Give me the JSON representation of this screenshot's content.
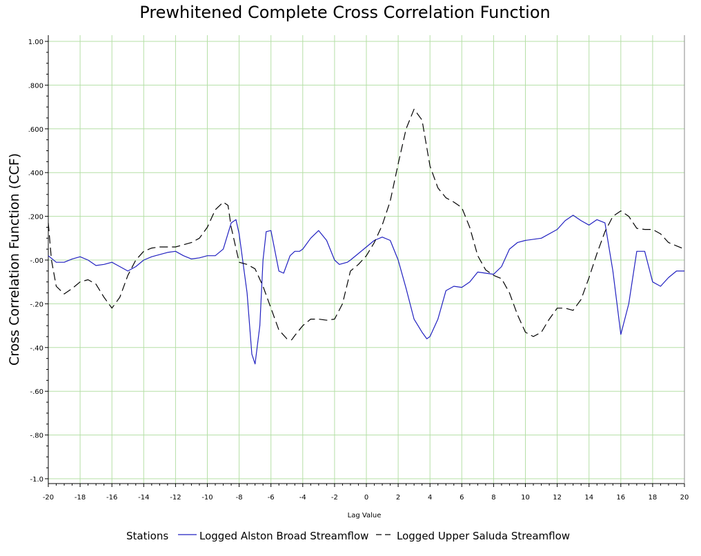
{
  "chart_data": {
    "type": "line",
    "title": "Prewhitened Complete Cross Correlation Function",
    "xlabel": "Lag Value",
    "ylabel": "Cross Correlation Function (CCF)",
    "xlim": [
      -20,
      20
    ],
    "ylim": [
      -1.0,
      1.0
    ],
    "x_ticks": [
      -20,
      -18,
      -16,
      -14,
      -12,
      -10,
      -8,
      -6,
      -4,
      -2,
      0,
      2,
      4,
      6,
      8,
      10,
      12,
      14,
      16,
      18,
      20
    ],
    "x_tick_labels": [
      "-20",
      "-18",
      "-16",
      "-14",
      "-12",
      "-10",
      "-8",
      "-6",
      "-4",
      "-2",
      "0",
      "2",
      "4",
      "6",
      "8",
      "10",
      "12",
      "14",
      "16",
      "18",
      "20"
    ],
    "y_ticks": [
      1.0,
      0.8,
      0.6,
      0.4,
      0.2,
      0.0,
      -0.2,
      -0.4,
      -0.6,
      -0.8,
      -1.0
    ],
    "y_tick_labels": [
      "1.00",
      ".800",
      ".600",
      ".400",
      ".200",
      "-.00",
      "-.20",
      "-.40",
      "-.60",
      "-.80",
      "-1.0"
    ],
    "grid": true,
    "grid_color": "#b5dfa6",
    "legend_title": "Stations",
    "legend_position": "bottom",
    "series": [
      {
        "name": "Logged Alston Broad Streamflow",
        "color": "#2020c0",
        "dash": "solid",
        "points": [
          [
            -20,
            0.02
          ],
          [
            -19.5,
            -0.01
          ],
          [
            -19,
            -0.01
          ],
          [
            -18.5,
            0.005
          ],
          [
            -18,
            0.015
          ],
          [
            -17.5,
            0.0
          ],
          [
            -17,
            -0.025
          ],
          [
            -16.5,
            -0.02
          ],
          [
            -16,
            -0.01
          ],
          [
            -15.5,
            -0.03
          ],
          [
            -15,
            -0.05
          ],
          [
            -14.5,
            -0.03
          ],
          [
            -14,
            0.0
          ],
          [
            -13.5,
            0.015
          ],
          [
            -13,
            0.025
          ],
          [
            -12.5,
            0.035
          ],
          [
            -12,
            0.04
          ],
          [
            -11.5,
            0.02
          ],
          [
            -11,
            0.005
          ],
          [
            -10.5,
            0.01
          ],
          [
            -10,
            0.02
          ],
          [
            -9.5,
            0.02
          ],
          [
            -9,
            0.05
          ],
          [
            -8.5,
            0.17
          ],
          [
            -8.2,
            0.185
          ],
          [
            -8,
            0.12
          ],
          [
            -7.5,
            -0.15
          ],
          [
            -7.2,
            -0.43
          ],
          [
            -7,
            -0.475
          ],
          [
            -6.7,
            -0.3
          ],
          [
            -6.5,
            0.0
          ],
          [
            -6.3,
            0.13
          ],
          [
            -6,
            0.135
          ],
          [
            -5.5,
            -0.05
          ],
          [
            -5.2,
            -0.06
          ],
          [
            -4.8,
            0.02
          ],
          [
            -4.5,
            0.04
          ],
          [
            -4.2,
            0.04
          ],
          [
            -4,
            0.05
          ],
          [
            -3.5,
            0.1
          ],
          [
            -3,
            0.135
          ],
          [
            -2.5,
            0.09
          ],
          [
            -2,
            0.0
          ],
          [
            -1.7,
            -0.02
          ],
          [
            -1.2,
            -0.01
          ],
          [
            -1,
            0.0
          ],
          [
            -0.5,
            0.03
          ],
          [
            0,
            0.06
          ],
          [
            0.5,
            0.09
          ],
          [
            1,
            0.105
          ],
          [
            1.5,
            0.09
          ],
          [
            2,
            0.0
          ],
          [
            2.5,
            -0.13
          ],
          [
            3,
            -0.27
          ],
          [
            3.5,
            -0.33
          ],
          [
            3.8,
            -0.36
          ],
          [
            4,
            -0.35
          ],
          [
            4.5,
            -0.27
          ],
          [
            5,
            -0.14
          ],
          [
            5.5,
            -0.12
          ],
          [
            6,
            -0.125
          ],
          [
            6.5,
            -0.1
          ],
          [
            7,
            -0.055
          ],
          [
            7.5,
            -0.06
          ],
          [
            8,
            -0.065
          ],
          [
            8.5,
            -0.03
          ],
          [
            9,
            0.05
          ],
          [
            9.5,
            0.08
          ],
          [
            10,
            0.09
          ],
          [
            11,
            0.1
          ],
          [
            12,
            0.14
          ],
          [
            12.5,
            0.18
          ],
          [
            13,
            0.205
          ],
          [
            13.5,
            0.18
          ],
          [
            14,
            0.16
          ],
          [
            14.5,
            0.185
          ],
          [
            15,
            0.17
          ],
          [
            15.5,
            -0.05
          ],
          [
            16,
            -0.34
          ],
          [
            16.5,
            -0.2
          ],
          [
            17,
            0.04
          ],
          [
            17.5,
            0.04
          ],
          [
            18,
            -0.1
          ],
          [
            18.5,
            -0.12
          ],
          [
            19,
            -0.08
          ],
          [
            19.5,
            -0.05
          ],
          [
            20,
            -0.05
          ]
        ]
      },
      {
        "name": "Logged Upper Saluda Streamflow",
        "color": "#000000",
        "dash": "dashed",
        "points": [
          [
            -20,
            0.17
          ],
          [
            -19.8,
            0.0
          ],
          [
            -19.5,
            -0.12
          ],
          [
            -19,
            -0.155
          ],
          [
            -18.5,
            -0.13
          ],
          [
            -18,
            -0.1
          ],
          [
            -17.5,
            -0.09
          ],
          [
            -17,
            -0.11
          ],
          [
            -16.5,
            -0.17
          ],
          [
            -16,
            -0.22
          ],
          [
            -15.5,
            -0.17
          ],
          [
            -15,
            -0.07
          ],
          [
            -14.5,
            0.0
          ],
          [
            -14,
            0.04
          ],
          [
            -13.5,
            0.055
          ],
          [
            -13,
            0.06
          ],
          [
            -12,
            0.06
          ],
          [
            -11.5,
            0.07
          ],
          [
            -11,
            0.08
          ],
          [
            -10.5,
            0.1
          ],
          [
            -10,
            0.15
          ],
          [
            -9.5,
            0.23
          ],
          [
            -9,
            0.265
          ],
          [
            -8.7,
            0.25
          ],
          [
            -8.5,
            0.15
          ],
          [
            -8,
            -0.01
          ],
          [
            -7.5,
            -0.02
          ],
          [
            -7,
            -0.04
          ],
          [
            -6.5,
            -0.12
          ],
          [
            -6,
            -0.22
          ],
          [
            -5.5,
            -0.32
          ],
          [
            -5,
            -0.36
          ],
          [
            -4.7,
            -0.365
          ],
          [
            -4.5,
            -0.345
          ],
          [
            -4,
            -0.3
          ],
          [
            -3.5,
            -0.27
          ],
          [
            -3,
            -0.27
          ],
          [
            -2.5,
            -0.275
          ],
          [
            -2,
            -0.27
          ],
          [
            -1.5,
            -0.2
          ],
          [
            -1,
            -0.05
          ],
          [
            -0.5,
            -0.02
          ],
          [
            0,
            0.02
          ],
          [
            0.5,
            0.08
          ],
          [
            1,
            0.16
          ],
          [
            1.5,
            0.27
          ],
          [
            2,
            0.44
          ],
          [
            2.5,
            0.6
          ],
          [
            3,
            0.69
          ],
          [
            3.5,
            0.64
          ],
          [
            4,
            0.43
          ],
          [
            4.5,
            0.33
          ],
          [
            5,
            0.285
          ],
          [
            5.5,
            0.265
          ],
          [
            6,
            0.24
          ],
          [
            6.5,
            0.15
          ],
          [
            7,
            0.02
          ],
          [
            7.5,
            -0.045
          ],
          [
            8,
            -0.07
          ],
          [
            8.5,
            -0.085
          ],
          [
            9,
            -0.15
          ],
          [
            9.5,
            -0.25
          ],
          [
            10,
            -0.33
          ],
          [
            10.5,
            -0.35
          ],
          [
            11,
            -0.33
          ],
          [
            11.5,
            -0.27
          ],
          [
            12,
            -0.22
          ],
          [
            12.5,
            -0.22
          ],
          [
            13,
            -0.23
          ],
          [
            13.5,
            -0.18
          ],
          [
            14,
            -0.08
          ],
          [
            14.5,
            0.03
          ],
          [
            15,
            0.13
          ],
          [
            15.5,
            0.2
          ],
          [
            16,
            0.225
          ],
          [
            16.5,
            0.2
          ],
          [
            17,
            0.145
          ],
          [
            17.5,
            0.14
          ],
          [
            18,
            0.14
          ],
          [
            18.5,
            0.12
          ],
          [
            19,
            0.08
          ],
          [
            19.5,
            0.065
          ],
          [
            20,
            0.05
          ]
        ]
      }
    ]
  }
}
